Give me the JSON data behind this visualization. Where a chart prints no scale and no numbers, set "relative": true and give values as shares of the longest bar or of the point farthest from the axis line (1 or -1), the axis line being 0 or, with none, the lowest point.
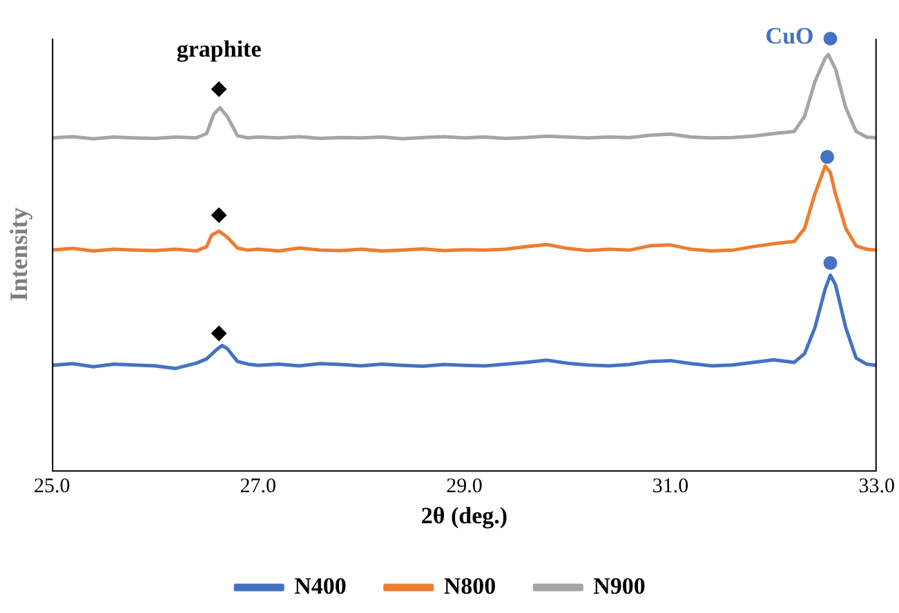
{
  "chart_data": {
    "type": "line",
    "relative": true,
    "xlabel": "2θ (deg.)",
    "ylabel": "Intensity",
    "xlim": [
      25,
      33
    ],
    "xticks": [
      {
        "value": 25,
        "label": "25.0"
      },
      {
        "value": 27,
        "label": "27.0"
      },
      {
        "value": 29,
        "label": "29.0"
      },
      {
        "value": 31,
        "label": "31.0"
      },
      {
        "value": 33,
        "label": "33.0"
      }
    ],
    "grid": false,
    "legend": "bottom",
    "marker": "none",
    "line_style": "solid",
    "annotations": [
      "graphite",
      "CuO"
    ],
    "series": [
      {
        "name": "N400",
        "color": "#4472c4",
        "x": [
          25.0,
          25.2,
          25.4,
          25.6,
          25.8,
          26.0,
          26.2,
          26.4,
          26.5,
          26.6,
          26.65,
          26.7,
          26.8,
          26.9,
          27.0,
          27.2,
          27.4,
          27.6,
          27.8,
          28.0,
          28.2,
          28.4,
          28.6,
          28.8,
          29.0,
          29.2,
          29.4,
          29.6,
          29.8,
          30.0,
          30.2,
          30.4,
          30.6,
          30.8,
          31.0,
          31.2,
          31.4,
          31.6,
          31.8,
          32.0,
          32.2,
          32.3,
          32.4,
          32.5,
          32.55,
          32.6,
          32.7,
          32.8,
          32.9,
          33.0
        ],
        "values": [
          0.243,
          0.247,
          0.24,
          0.246,
          0.244,
          0.242,
          0.236,
          0.248,
          0.258,
          0.28,
          0.289,
          0.282,
          0.252,
          0.246,
          0.243,
          0.246,
          0.242,
          0.247,
          0.245,
          0.242,
          0.246,
          0.243,
          0.241,
          0.245,
          0.243,
          0.242,
          0.246,
          0.25,
          0.255,
          0.248,
          0.244,
          0.242,
          0.245,
          0.252,
          0.254,
          0.247,
          0.242,
          0.244,
          0.25,
          0.256,
          0.25,
          0.27,
          0.33,
          0.42,
          0.452,
          0.43,
          0.33,
          0.26,
          0.246,
          0.243
        ]
      },
      {
        "name": "N800",
        "color": "#ed7d31",
        "x": [
          25.0,
          25.2,
          25.4,
          25.6,
          25.8,
          26.0,
          26.2,
          26.4,
          26.5,
          26.55,
          26.62,
          26.7,
          26.8,
          26.9,
          27.0,
          27.2,
          27.4,
          27.6,
          27.8,
          28.0,
          28.2,
          28.4,
          28.6,
          28.8,
          29.0,
          29.2,
          29.4,
          29.6,
          29.8,
          30.0,
          30.2,
          30.4,
          30.6,
          30.8,
          31.0,
          31.2,
          31.4,
          31.6,
          31.8,
          32.0,
          32.2,
          32.3,
          32.4,
          32.5,
          32.55,
          32.6,
          32.7,
          32.8,
          32.9,
          33.0
        ],
        "values": [
          0.51,
          0.514,
          0.508,
          0.512,
          0.51,
          0.509,
          0.512,
          0.508,
          0.518,
          0.545,
          0.554,
          0.54,
          0.515,
          0.51,
          0.512,
          0.508,
          0.515,
          0.51,
          0.509,
          0.512,
          0.508,
          0.51,
          0.513,
          0.509,
          0.511,
          0.51,
          0.512,
          0.518,
          0.523,
          0.514,
          0.509,
          0.512,
          0.51,
          0.52,
          0.522,
          0.512,
          0.508,
          0.51,
          0.518,
          0.525,
          0.53,
          0.56,
          0.64,
          0.705,
          0.69,
          0.64,
          0.56,
          0.52,
          0.512,
          0.51
        ]
      },
      {
        "name": "N900",
        "color": "#a5a5a5",
        "x": [
          25.0,
          25.2,
          25.4,
          25.6,
          25.8,
          26.0,
          26.2,
          26.4,
          26.5,
          26.57,
          26.63,
          26.7,
          26.8,
          26.9,
          27.0,
          27.2,
          27.4,
          27.6,
          27.8,
          28.0,
          28.2,
          28.4,
          28.6,
          28.8,
          29.0,
          29.2,
          29.4,
          29.6,
          29.8,
          30.0,
          30.2,
          30.4,
          30.6,
          30.8,
          31.0,
          31.2,
          31.4,
          31.6,
          31.8,
          32.0,
          32.2,
          32.3,
          32.4,
          32.5,
          32.53,
          32.6,
          32.7,
          32.8,
          32.9,
          33.0
        ],
        "values": [
          0.77,
          0.773,
          0.768,
          0.772,
          0.77,
          0.769,
          0.772,
          0.77,
          0.78,
          0.825,
          0.84,
          0.82,
          0.775,
          0.77,
          0.772,
          0.77,
          0.773,
          0.769,
          0.771,
          0.77,
          0.772,
          0.768,
          0.771,
          0.773,
          0.77,
          0.772,
          0.769,
          0.771,
          0.774,
          0.772,
          0.77,
          0.772,
          0.771,
          0.776,
          0.779,
          0.772,
          0.77,
          0.771,
          0.774,
          0.78,
          0.785,
          0.82,
          0.9,
          0.955,
          0.963,
          0.93,
          0.84,
          0.785,
          0.772,
          0.77
        ]
      },
      {
        "type": "scatter",
        "marker": "diamond",
        "color": "#000000",
        "x": [
          26.62,
          26.62,
          26.62
        ],
        "values": [
          0.883,
          0.591,
          0.317
        ]
      },
      {
        "type": "scatter",
        "marker": "circle",
        "color": "#4472c4",
        "x": [
          32.55,
          32.52,
          32.55
        ],
        "values": [
          1.0,
          0.726,
          0.48
        ]
      }
    ]
  }
}
